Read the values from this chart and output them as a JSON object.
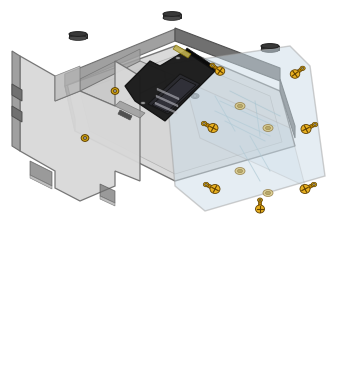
{
  "bg_color": "#ffffff",
  "gray_light": "#c8c8c8",
  "gray_lighter": "#d8d8d8",
  "gray_mid": "#a0a0a0",
  "gray_dark": "#707070",
  "gray_darker": "#505050",
  "gray_plate": "#b0b0b0",
  "transparent_plate": "#ccdde8",
  "transparent_alpha": 0.5,
  "screw_head": "#e8b020",
  "screw_shaft": "#b88000",
  "screw_dark": "#604000",
  "pcb_dark": "#1a1a1a",
  "pcb_screen": "#252530",
  "pcb_screen2": "#383840",
  "magnet_top": "#383838",
  "magnet_side": "#484848",
  "standoff_color": "#c8b860",
  "nut_color": "#d4a810",
  "nut_hole": "#909090",
  "white": "#ffffff"
}
